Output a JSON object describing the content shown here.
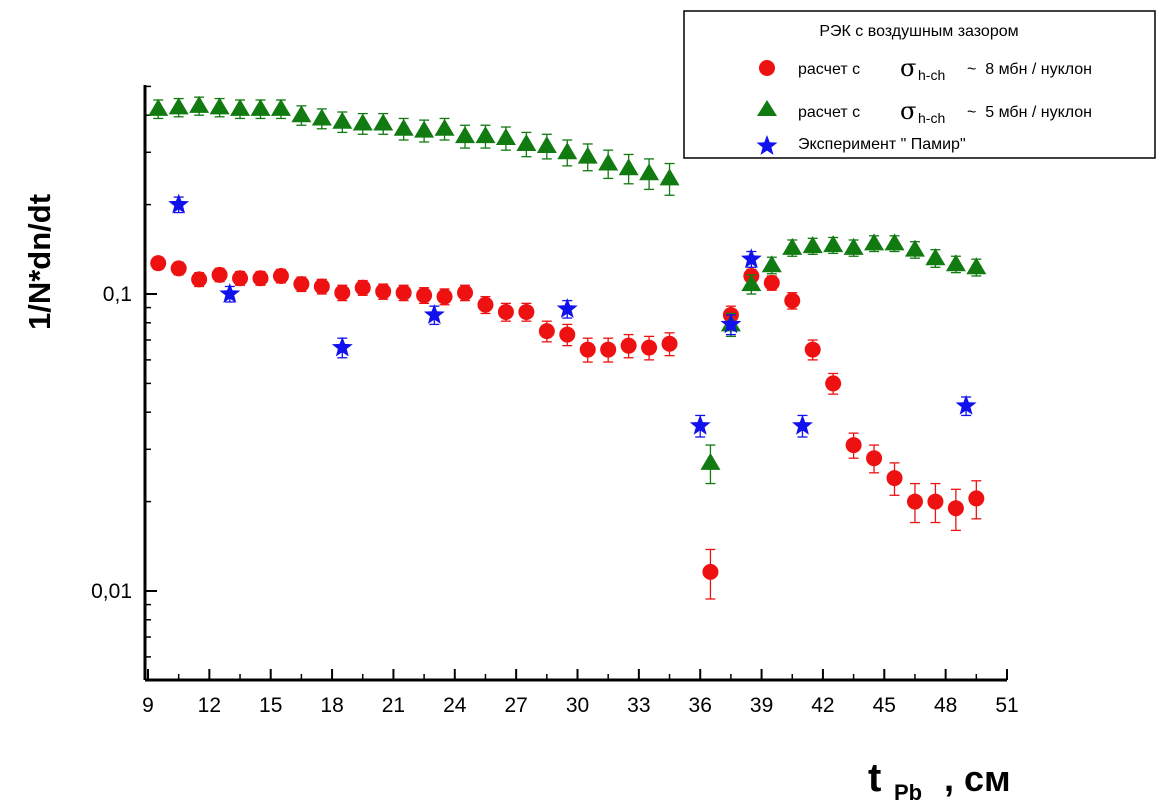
{
  "chart_data": {
    "type": "scatter",
    "ylabel": "1/N*dn/dt",
    "xlabel": {
      "main": "t",
      "sub": "Pb",
      "suffix": " , см"
    },
    "x_ticks": [
      9,
      12,
      15,
      18,
      21,
      24,
      27,
      30,
      33,
      36,
      39,
      42,
      45,
      48,
      51
    ],
    "xlim": [
      9,
      51
    ],
    "y_scale": "log",
    "ylim": [
      0.005,
      0.5
    ],
    "y_tick_labels": [
      {
        "value": 0.1,
        "label": "0,1"
      },
      {
        "value": 0.01,
        "label": "0,01"
      }
    ],
    "legend": {
      "title": "РЭК с воздушным зазором",
      "position": "top-right",
      "entries": [
        {
          "series": "red",
          "prefix": "расчет с",
          "sigma": "σ",
          "sub": "h-ch",
          "suffix": "~  8 мбн / нуклон"
        },
        {
          "series": "green",
          "prefix": "расчет с",
          "sigma": "σ",
          "sub": "h-ch",
          "suffix": "~  5 мбн / нуклон"
        },
        {
          "series": "blue",
          "text": "Эксперимент \" Памир\""
        }
      ]
    },
    "series": [
      {
        "id": "red",
        "marker": "circle",
        "color": "#ee1111",
        "points": [
          {
            "x": 9.5,
            "y": 0.127,
            "err": 0.006
          },
          {
            "x": 10.5,
            "y": 0.122,
            "err": 0.006
          },
          {
            "x": 11.5,
            "y": 0.112,
            "err": 0.006
          },
          {
            "x": 12.5,
            "y": 0.116,
            "err": 0.006
          },
          {
            "x": 13.5,
            "y": 0.113,
            "err": 0.006
          },
          {
            "x": 14.5,
            "y": 0.113,
            "err": 0.006
          },
          {
            "x": 15.5,
            "y": 0.115,
            "err": 0.006
          },
          {
            "x": 16.5,
            "y": 0.108,
            "err": 0.006
          },
          {
            "x": 17.5,
            "y": 0.106,
            "err": 0.006
          },
          {
            "x": 18.5,
            "y": 0.101,
            "err": 0.006
          },
          {
            "x": 19.5,
            "y": 0.105,
            "err": 0.006
          },
          {
            "x": 20.5,
            "y": 0.102,
            "err": 0.006
          },
          {
            "x": 21.5,
            "y": 0.101,
            "err": 0.006
          },
          {
            "x": 22.5,
            "y": 0.099,
            "err": 0.006
          },
          {
            "x": 23.5,
            "y": 0.098,
            "err": 0.006
          },
          {
            "x": 24.5,
            "y": 0.101,
            "err": 0.006
          },
          {
            "x": 25.5,
            "y": 0.092,
            "err": 0.006
          },
          {
            "x": 26.5,
            "y": 0.087,
            "err": 0.006
          },
          {
            "x": 27.5,
            "y": 0.087,
            "err": 0.006
          },
          {
            "x": 28.5,
            "y": 0.075,
            "err": 0.006
          },
          {
            "x": 29.5,
            "y": 0.073,
            "err": 0.006
          },
          {
            "x": 30.5,
            "y": 0.065,
            "err": 0.006
          },
          {
            "x": 31.5,
            "y": 0.065,
            "err": 0.006
          },
          {
            "x": 32.5,
            "y": 0.067,
            "err": 0.006
          },
          {
            "x": 33.5,
            "y": 0.066,
            "err": 0.006
          },
          {
            "x": 34.5,
            "y": 0.068,
            "err": 0.006
          },
          {
            "x": 36.5,
            "y": 0.0116,
            "err": 0.0022
          },
          {
            "x": 37.5,
            "y": 0.085,
            "err": 0.006
          },
          {
            "x": 38.5,
            "y": 0.115,
            "err": 0.006
          },
          {
            "x": 39.5,
            "y": 0.109,
            "err": 0.006
          },
          {
            "x": 40.5,
            "y": 0.095,
            "err": 0.006
          },
          {
            "x": 41.5,
            "y": 0.065,
            "err": 0.005
          },
          {
            "x": 42.5,
            "y": 0.05,
            "err": 0.004
          },
          {
            "x": 43.5,
            "y": 0.031,
            "err": 0.003
          },
          {
            "x": 44.5,
            "y": 0.028,
            "err": 0.003
          },
          {
            "x": 45.5,
            "y": 0.024,
            "err": 0.003
          },
          {
            "x": 46.5,
            "y": 0.02,
            "err": 0.003
          },
          {
            "x": 47.5,
            "y": 0.02,
            "err": 0.003
          },
          {
            "x": 48.5,
            "y": 0.019,
            "err": 0.003
          },
          {
            "x": 49.5,
            "y": 0.0205,
            "err": 0.003
          }
        ]
      },
      {
        "id": "green",
        "marker": "triangle",
        "color": "#117a11",
        "points": [
          {
            "x": 9.5,
            "y": 0.42,
            "err": 0.03
          },
          {
            "x": 10.5,
            "y": 0.425,
            "err": 0.03
          },
          {
            "x": 11.5,
            "y": 0.43,
            "err": 0.03
          },
          {
            "x": 12.5,
            "y": 0.425,
            "err": 0.03
          },
          {
            "x": 13.5,
            "y": 0.42,
            "err": 0.03
          },
          {
            "x": 14.5,
            "y": 0.42,
            "err": 0.03
          },
          {
            "x": 15.5,
            "y": 0.42,
            "err": 0.03
          },
          {
            "x": 16.5,
            "y": 0.4,
            "err": 0.03
          },
          {
            "x": 17.5,
            "y": 0.39,
            "err": 0.03
          },
          {
            "x": 18.5,
            "y": 0.38,
            "err": 0.03
          },
          {
            "x": 19.5,
            "y": 0.375,
            "err": 0.03
          },
          {
            "x": 20.5,
            "y": 0.375,
            "err": 0.03
          },
          {
            "x": 21.5,
            "y": 0.36,
            "err": 0.03
          },
          {
            "x": 22.5,
            "y": 0.355,
            "err": 0.03
          },
          {
            "x": 23.5,
            "y": 0.36,
            "err": 0.03
          },
          {
            "x": 24.5,
            "y": 0.34,
            "err": 0.03
          },
          {
            "x": 25.5,
            "y": 0.34,
            "err": 0.03
          },
          {
            "x": 26.5,
            "y": 0.335,
            "err": 0.03
          },
          {
            "x": 27.5,
            "y": 0.32,
            "err": 0.03
          },
          {
            "x": 28.5,
            "y": 0.315,
            "err": 0.03
          },
          {
            "x": 29.5,
            "y": 0.3,
            "err": 0.03
          },
          {
            "x": 30.5,
            "y": 0.29,
            "err": 0.03
          },
          {
            "x": 31.5,
            "y": 0.275,
            "err": 0.03
          },
          {
            "x": 32.5,
            "y": 0.265,
            "err": 0.03
          },
          {
            "x": 33.5,
            "y": 0.255,
            "err": 0.03
          },
          {
            "x": 34.5,
            "y": 0.245,
            "err": 0.03
          },
          {
            "x": 36.5,
            "y": 0.027,
            "err": 0.004
          },
          {
            "x": 37.5,
            "y": 0.079,
            "err": 0.007
          },
          {
            "x": 38.5,
            "y": 0.108,
            "err": 0.008
          },
          {
            "x": 39.5,
            "y": 0.125,
            "err": 0.008
          },
          {
            "x": 40.5,
            "y": 0.143,
            "err": 0.009
          },
          {
            "x": 41.5,
            "y": 0.145,
            "err": 0.009
          },
          {
            "x": 42.5,
            "y": 0.146,
            "err": 0.009
          },
          {
            "x": 43.5,
            "y": 0.143,
            "err": 0.009
          },
          {
            "x": 44.5,
            "y": 0.148,
            "err": 0.009
          },
          {
            "x": 45.5,
            "y": 0.148,
            "err": 0.009
          },
          {
            "x": 46.5,
            "y": 0.141,
            "err": 0.009
          },
          {
            "x": 47.5,
            "y": 0.132,
            "err": 0.009
          },
          {
            "x": 48.5,
            "y": 0.126,
            "err": 0.008
          },
          {
            "x": 49.5,
            "y": 0.123,
            "err": 0.008
          }
        ]
      },
      {
        "id": "blue",
        "marker": "star",
        "color": "#1111ee",
        "points": [
          {
            "x": 10.5,
            "y": 0.2,
            "err": 0.012
          },
          {
            "x": 13.0,
            "y": 0.1,
            "err": 0.006
          },
          {
            "x": 18.5,
            "y": 0.066,
            "err": 0.005
          },
          {
            "x": 23.0,
            "y": 0.085,
            "err": 0.006
          },
          {
            "x": 29.5,
            "y": 0.089,
            "err": 0.006
          },
          {
            "x": 36.0,
            "y": 0.036,
            "err": 0.003
          },
          {
            "x": 37.5,
            "y": 0.079,
            "err": 0.006
          },
          {
            "x": 38.5,
            "y": 0.131,
            "err": 0.008
          },
          {
            "x": 41.0,
            "y": 0.036,
            "err": 0.003
          },
          {
            "x": 49.0,
            "y": 0.042,
            "err": 0.003
          }
        ]
      }
    ]
  }
}
